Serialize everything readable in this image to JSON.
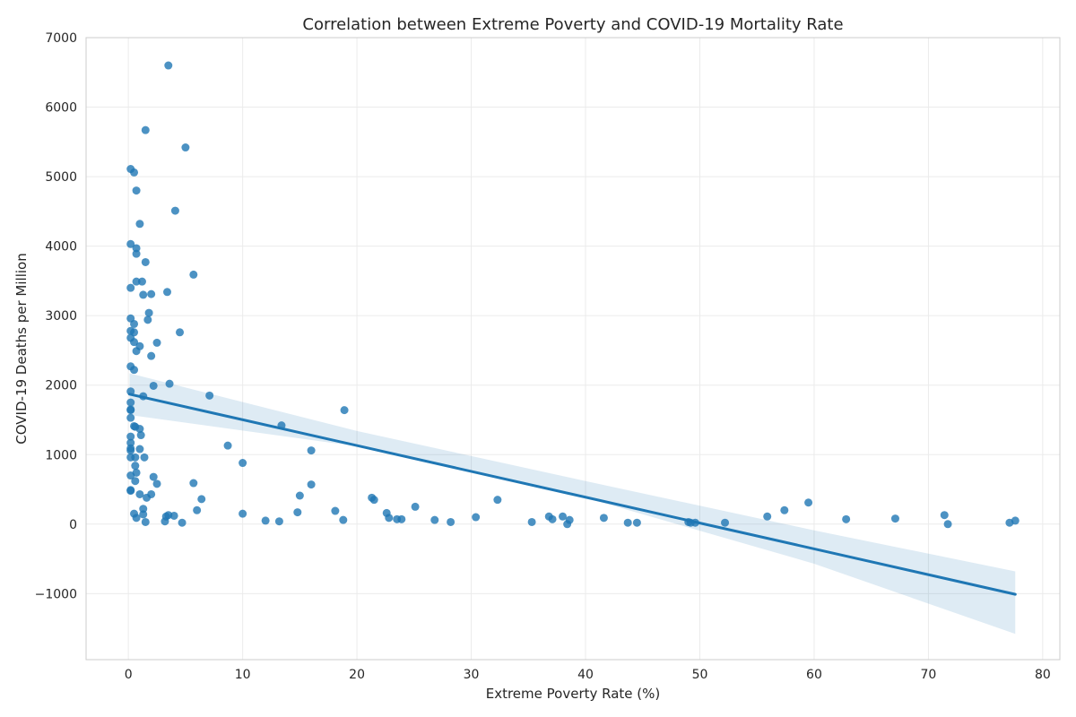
{
  "chart_data": {
    "type": "scatter",
    "title": "Correlation between Extreme Poverty and COVID-19 Mortality Rate",
    "xlabel": "Extreme Poverty Rate (%)",
    "ylabel": "COVID-19 Deaths per Million",
    "xlim": [
      -3.7,
      81.5
    ],
    "ylim": [
      -1950,
      7000
    ],
    "xticks": [
      0,
      10,
      20,
      30,
      40,
      50,
      60,
      70,
      80
    ],
    "yticks": [
      -1000,
      0,
      1000,
      2000,
      3000,
      4000,
      5000,
      6000,
      7000
    ],
    "grid": true,
    "point_color": "#1f77b4",
    "regression": {
      "x": [
        0.1,
        77.6
      ],
      "y": [
        1870,
        -1010
      ]
    },
    "confidence_band": {
      "x": [
        0.1,
        20,
        40,
        60,
        77.6
      ],
      "upper": [
        2170,
        1340,
        620,
        -90,
        -680
      ],
      "lower": [
        1570,
        1120,
        380,
        -570,
        -1580
      ]
    },
    "points": [
      [
        3.5,
        6600
      ],
      [
        1.5,
        5670
      ],
      [
        5.0,
        5420
      ],
      [
        0.2,
        5110
      ],
      [
        0.5,
        5060
      ],
      [
        0.7,
        4800
      ],
      [
        4.1,
        4510
      ],
      [
        1.0,
        4320
      ],
      [
        0.2,
        4030
      ],
      [
        0.7,
        3970
      ],
      [
        0.7,
        3890
      ],
      [
        1.5,
        3770
      ],
      [
        5.7,
        3590
      ],
      [
        0.7,
        3490
      ],
      [
        1.2,
        3490
      ],
      [
        0.2,
        3400
      ],
      [
        1.3,
        3300
      ],
      [
        2.0,
        3310
      ],
      [
        3.4,
        3340
      ],
      [
        1.8,
        3040
      ],
      [
        1.7,
        2940
      ],
      [
        0.2,
        2960
      ],
      [
        0.5,
        2880
      ],
      [
        0.2,
        2780
      ],
      [
        0.5,
        2760
      ],
      [
        4.5,
        2760
      ],
      [
        0.2,
        2680
      ],
      [
        0.5,
        2620
      ],
      [
        2.5,
        2610
      ],
      [
        1.0,
        2560
      ],
      [
        0.7,
        2490
      ],
      [
        2.0,
        2420
      ],
      [
        0.2,
        2270
      ],
      [
        0.5,
        2220
      ],
      [
        3.6,
        2020
      ],
      [
        2.2,
        1990
      ],
      [
        0.2,
        1910
      ],
      [
        7.1,
        1850
      ],
      [
        1.3,
        1840
      ],
      [
        0.2,
        1750
      ],
      [
        0.2,
        1650
      ],
      [
        0.2,
        1640
      ],
      [
        18.9,
        1640
      ],
      [
        0.2,
        1530
      ],
      [
        13.4,
        1420
      ],
      [
        0.5,
        1410
      ],
      [
        0.6,
        1400
      ],
      [
        1.0,
        1370
      ],
      [
        1.1,
        1280
      ],
      [
        0.2,
        1260
      ],
      [
        0.2,
        1170
      ],
      [
        8.7,
        1130
      ],
      [
        0.2,
        1090
      ],
      [
        1.0,
        1080
      ],
      [
        0.2,
        1060
      ],
      [
        16.0,
        1060
      ],
      [
        0.2,
        960
      ],
      [
        0.6,
        960
      ],
      [
        1.4,
        960
      ],
      [
        10.0,
        880
      ],
      [
        0.6,
        840
      ],
      [
        0.7,
        740
      ],
      [
        0.2,
        700
      ],
      [
        2.2,
        680
      ],
      [
        0.6,
        620
      ],
      [
        5.7,
        590
      ],
      [
        2.5,
        580
      ],
      [
        16.0,
        570
      ],
      [
        0.2,
        490
      ],
      [
        0.2,
        480
      ],
      [
        1.0,
        430
      ],
      [
        2.0,
        430
      ],
      [
        15.0,
        410
      ],
      [
        1.6,
        380
      ],
      [
        21.3,
        380
      ],
      [
        6.4,
        360
      ],
      [
        21.5,
        350
      ],
      [
        32.3,
        350
      ],
      [
        59.5,
        310
      ],
      [
        25.1,
        250
      ],
      [
        1.3,
        220
      ],
      [
        6.0,
        200
      ],
      [
        57.4,
        200
      ],
      [
        18.1,
        190
      ],
      [
        14.8,
        170
      ],
      [
        0.5,
        150
      ],
      [
        10.0,
        150
      ],
      [
        22.6,
        160
      ],
      [
        1.3,
        140
      ],
      [
        3.5,
        130
      ],
      [
        4.0,
        120
      ],
      [
        71.4,
        130
      ],
      [
        3.3,
        110
      ],
      [
        30.4,
        100
      ],
      [
        36.8,
        110
      ],
      [
        38.0,
        110
      ],
      [
        55.9,
        110
      ],
      [
        0.7,
        90
      ],
      [
        22.8,
        90
      ],
      [
        41.6,
        90
      ],
      [
        67.1,
        80
      ],
      [
        23.5,
        70
      ],
      [
        23.9,
        70
      ],
      [
        26.8,
        60
      ],
      [
        37.1,
        70
      ],
      [
        62.8,
        70
      ],
      [
        3.2,
        40
      ],
      [
        12.0,
        50
      ],
      [
        13.2,
        40
      ],
      [
        18.8,
        60
      ],
      [
        38.6,
        60
      ],
      [
        77.6,
        50
      ],
      [
        1.5,
        30
      ],
      [
        4.7,
        20
      ],
      [
        28.2,
        30
      ],
      [
        35.3,
        30
      ],
      [
        43.7,
        20
      ],
      [
        44.5,
        20
      ],
      [
        49.0,
        30
      ],
      [
        49.2,
        20
      ],
      [
        49.6,
        20
      ],
      [
        52.2,
        20
      ],
      [
        77.1,
        20
      ],
      [
        38.4,
        0
      ],
      [
        71.7,
        0
      ]
    ]
  }
}
